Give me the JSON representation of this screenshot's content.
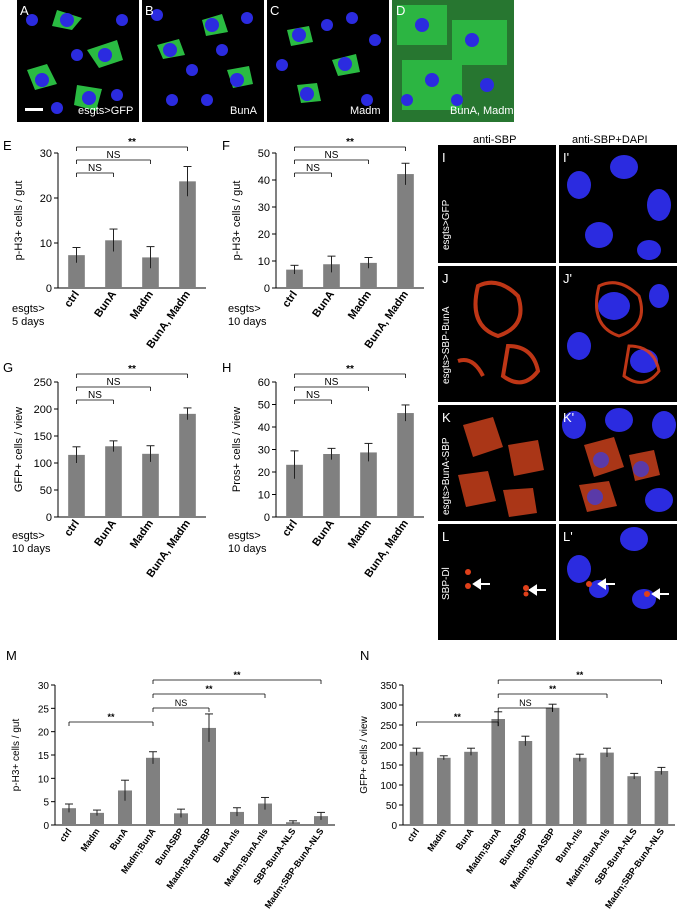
{
  "panels_top": [
    {
      "letter": "A",
      "label": "esgts>GFP"
    },
    {
      "letter": "B",
      "label": "BunA"
    },
    {
      "letter": "C",
      "label": "Madm"
    },
    {
      "letter": "D",
      "label": "BunA, Madm"
    }
  ],
  "right_grid": {
    "col_headers": [
      "anti-SBP",
      "anti-SBP+DAPI"
    ],
    "rows": [
      {
        "left": "I",
        "right": "I'",
        "side_label": "esgts>GFP"
      },
      {
        "left": "J",
        "right": "J'",
        "side_label": "esgts>SBP-BunA"
      },
      {
        "left": "K",
        "right": "K'",
        "side_label": "esgts>BunA-SBP"
      },
      {
        "left": "L",
        "right": "L'",
        "side_label": "SBP-Dl"
      }
    ]
  },
  "colors": {
    "bar": "#808080",
    "gfp": "#2fd04a",
    "dapi": "#2b2be0",
    "sbp": "#e0401a"
  },
  "chart_data": [
    {
      "panel": "E",
      "type": "bar",
      "ylabel": "p-H3+ cells / gut",
      "xlabel": "esgts>\n5 days",
      "categories": [
        "ctrl",
        "BunA",
        "Madm",
        "BunA, Madm"
      ],
      "values": [
        7.3,
        10.6,
        6.8,
        23.7
      ],
      "errors": [
        1.7,
        2.5,
        2.4,
        3.3
      ],
      "ylim": [
        0,
        30
      ],
      "yticks": [
        0,
        10,
        20,
        30
      ],
      "sig": [
        {
          "from": 0,
          "to": 3,
          "label": "**"
        },
        {
          "from": 0,
          "to": 2,
          "label": "NS"
        },
        {
          "from": 0,
          "to": 1,
          "label": "NS"
        }
      ]
    },
    {
      "panel": "F",
      "type": "bar",
      "ylabel": "p-H3+ cells / gut",
      "xlabel": "esgts>\n10 days",
      "categories": [
        "ctrl",
        "BunA",
        "Madm",
        "BunA, Madm"
      ],
      "values": [
        6.8,
        8.8,
        9.3,
        42.2
      ],
      "errors": [
        1.6,
        3.0,
        2.0,
        4.0
      ],
      "ylim": [
        0,
        50
      ],
      "yticks": [
        0,
        10,
        20,
        30,
        40,
        50
      ],
      "sig": [
        {
          "from": 0,
          "to": 3,
          "label": "**"
        },
        {
          "from": 0,
          "to": 2,
          "label": "NS"
        },
        {
          "from": 0,
          "to": 1,
          "label": "NS"
        }
      ]
    },
    {
      "panel": "G",
      "type": "bar",
      "ylabel": "GFP+ cells / view",
      "xlabel": "esgts>\n10 days",
      "categories": [
        "ctrl",
        "BunA",
        "Madm",
        "BunA, Madm"
      ],
      "values": [
        115,
        131,
        117,
        191
      ],
      "errors": [
        15,
        10,
        15,
        11
      ],
      "ylim": [
        0,
        250
      ],
      "yticks": [
        0,
        50,
        100,
        150,
        200,
        250
      ],
      "sig": [
        {
          "from": 0,
          "to": 3,
          "label": "**"
        },
        {
          "from": 0,
          "to": 2,
          "label": "NS"
        },
        {
          "from": 0,
          "to": 1,
          "label": "NS"
        }
      ]
    },
    {
      "panel": "H",
      "type": "bar",
      "ylabel": "Pros+ cells / view",
      "xlabel": "esgts>\n10 days",
      "categories": [
        "ctrl",
        "BunA",
        "Madm",
        "BunA, Madm"
      ],
      "values": [
        23.2,
        28.0,
        28.7,
        46.2
      ],
      "errors": [
        6.2,
        2.5,
        4.0,
        3.6
      ],
      "ylim": [
        0,
        60
      ],
      "yticks": [
        0,
        10,
        20,
        30,
        40,
        50,
        60
      ],
      "sig": [
        {
          "from": 0,
          "to": 3,
          "label": "**"
        },
        {
          "from": 0,
          "to": 2,
          "label": "NS"
        },
        {
          "from": 0,
          "to": 1,
          "label": "NS"
        }
      ]
    },
    {
      "panel": "M",
      "type": "bar",
      "ylabel": "p-H3+ cells / gut",
      "xlabel": "",
      "categories": [
        "ctrl",
        "Madm",
        "BunA",
        "Madm;BunA",
        "BunASBP",
        "Madm;BunASBP",
        "BunA.nls",
        "Madm;BunA.nls",
        "SBP-BunA-NLS",
        "Madm;SBP-BunA-NLS"
      ],
      "values": [
        3.6,
        2.6,
        7.4,
        14.4,
        2.5,
        20.8,
        2.8,
        4.6,
        0.6,
        1.9
      ],
      "errors": [
        0.9,
        0.6,
        2.2,
        1.3,
        0.9,
        3.0,
        0.9,
        1.3,
        0.3,
        0.8
      ],
      "ylim": [
        0,
        30
      ],
      "yticks": [
        0,
        5,
        10,
        15,
        20,
        25,
        30
      ],
      "sig": [
        {
          "from": 3,
          "to": 9,
          "label": "**"
        },
        {
          "from": 3,
          "to": 7,
          "label": "**"
        },
        {
          "from": 3,
          "to": 5,
          "label": "NS"
        },
        {
          "from": 0,
          "to": 3,
          "label": "**"
        }
      ]
    },
    {
      "panel": "N",
      "type": "bar",
      "ylabel": "GFP+ cells / view",
      "xlabel": "",
      "categories": [
        "ctrl",
        "Madm",
        "BunA",
        "Madm;BunA",
        "BunASBP",
        "Madm;BunASBP",
        "BunA.nls",
        "Madm;BunA.nls",
        "SBP-BunA-NLS",
        "Madm;SBP-BunA-NLS"
      ],
      "values": [
        183,
        168,
        183,
        265,
        210,
        293,
        168,
        181,
        122,
        135
      ],
      "errors": [
        9,
        5,
        9,
        18,
        12,
        9,
        9,
        11,
        7,
        9
      ],
      "ylim": [
        0,
        350
      ],
      "yticks": [
        0,
        50,
        100,
        150,
        200,
        250,
        300,
        350
      ],
      "sig": [
        {
          "from": 3,
          "to": 9,
          "label": "**"
        },
        {
          "from": 3,
          "to": 7,
          "label": "**"
        },
        {
          "from": 3,
          "to": 5,
          "label": "NS"
        },
        {
          "from": 0,
          "to": 3,
          "label": "**"
        }
      ]
    }
  ]
}
